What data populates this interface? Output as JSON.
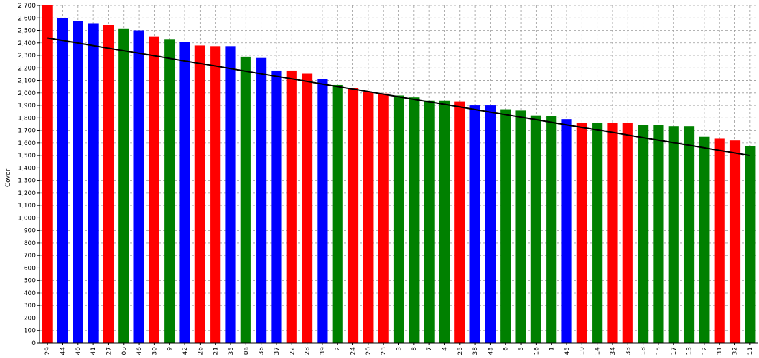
{
  "chart_data": {
    "type": "bar",
    "title": "",
    "xlabel": "",
    "ylabel": "Cover",
    "ylim": [
      0,
      2700
    ],
    "ytick_step": 100,
    "grid": true,
    "legend": "none",
    "colors": {
      "red": "#ff0000",
      "blue": "#0000ff",
      "green": "#008000",
      "trend": "#000000",
      "grid": "#9a9a9a"
    },
    "categories": [
      "29",
      "44",
      "40",
      "41",
      "27",
      "0b",
      "46",
      "30",
      "9",
      "42",
      "26",
      "21",
      "35",
      "0a",
      "36",
      "37",
      "22",
      "28",
      "39",
      "2",
      "24",
      "20",
      "23",
      "3",
      "8",
      "7",
      "4",
      "25",
      "38",
      "43",
      "6",
      "5",
      "16",
      "1",
      "45",
      "19",
      "14",
      "34",
      "33",
      "18",
      "15",
      "17",
      "13",
      "12",
      "31",
      "32",
      "11"
    ],
    "values": [
      2740,
      2600,
      2575,
      2555,
      2545,
      2515,
      2500,
      2450,
      2430,
      2405,
      2380,
      2375,
      2375,
      2290,
      2280,
      2180,
      2180,
      2155,
      2110,
      2065,
      2040,
      2010,
      1995,
      1980,
      1965,
      1940,
      1940,
      1930,
      1900,
      1900,
      1870,
      1860,
      1820,
      1815,
      1790,
      1760,
      1760,
      1760,
      1760,
      1745,
      1745,
      1735,
      1735,
      1650,
      1635,
      1620,
      1575
    ],
    "bar_colors": [
      "red",
      "blue",
      "blue",
      "blue",
      "red",
      "green",
      "blue",
      "red",
      "green",
      "blue",
      "red",
      "red",
      "blue",
      "green",
      "blue",
      "blue",
      "red",
      "red",
      "blue",
      "green",
      "red",
      "red",
      "red",
      "green",
      "green",
      "green",
      "green",
      "red",
      "blue",
      "blue",
      "green",
      "green",
      "green",
      "green",
      "blue",
      "red",
      "green",
      "red",
      "red",
      "green",
      "green",
      "green",
      "green",
      "green",
      "red",
      "red",
      "green"
    ],
    "trendline": {
      "from": [
        "29",
        2440
      ],
      "to": [
        "11",
        1500
      ]
    }
  }
}
